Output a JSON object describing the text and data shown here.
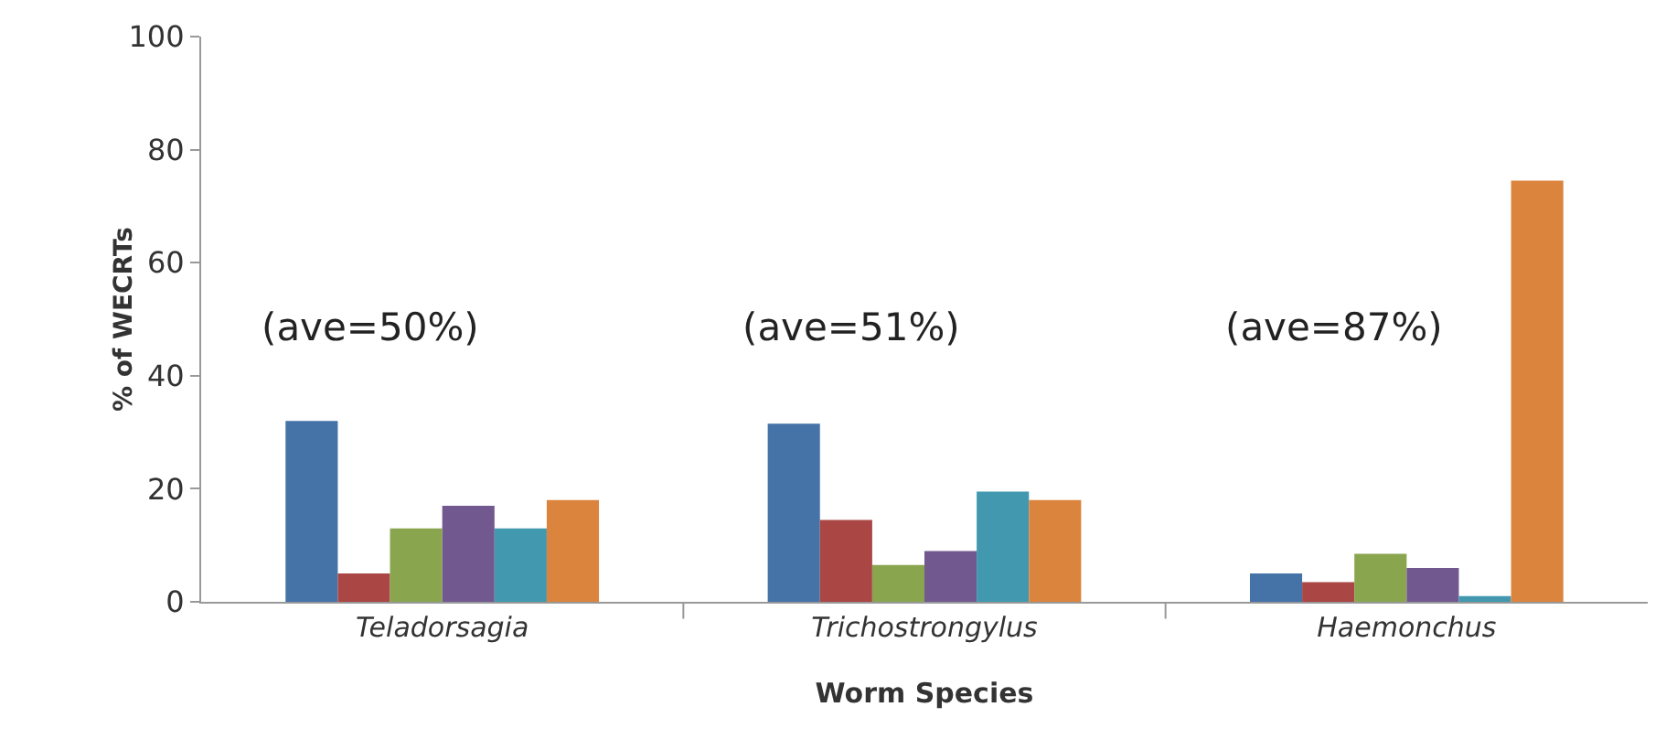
{
  "chart_data": {
    "type": "bar",
    "xlabel": "Worm Species",
    "ylabel": "% of WECRTs",
    "categories": [
      "Teladorsagia",
      "Trichostrongylus",
      "Haemonchus"
    ],
    "series": [
      {
        "color": "#4572a7",
        "values": [
          32,
          31.5,
          5
        ]
      },
      {
        "color": "#aa4643",
        "values": [
          5,
          14.5,
          3.5
        ]
      },
      {
        "color": "#89a54e",
        "values": [
          13,
          6.5,
          8.5
        ]
      },
      {
        "color": "#71588f",
        "values": [
          17,
          9,
          6
        ]
      },
      {
        "color": "#4198af",
        "values": [
          13,
          19.5,
          1
        ]
      },
      {
        "color": "#db843d",
        "values": [
          18,
          18,
          74.5
        ]
      }
    ],
    "ylim": [
      0,
      100
    ],
    "yticks": [
      0,
      20,
      40,
      60,
      80,
      100
    ],
    "grid": false,
    "annotations": [
      "(ave=50%)",
      "(ave=51%)",
      "(ave=87%)"
    ]
  }
}
